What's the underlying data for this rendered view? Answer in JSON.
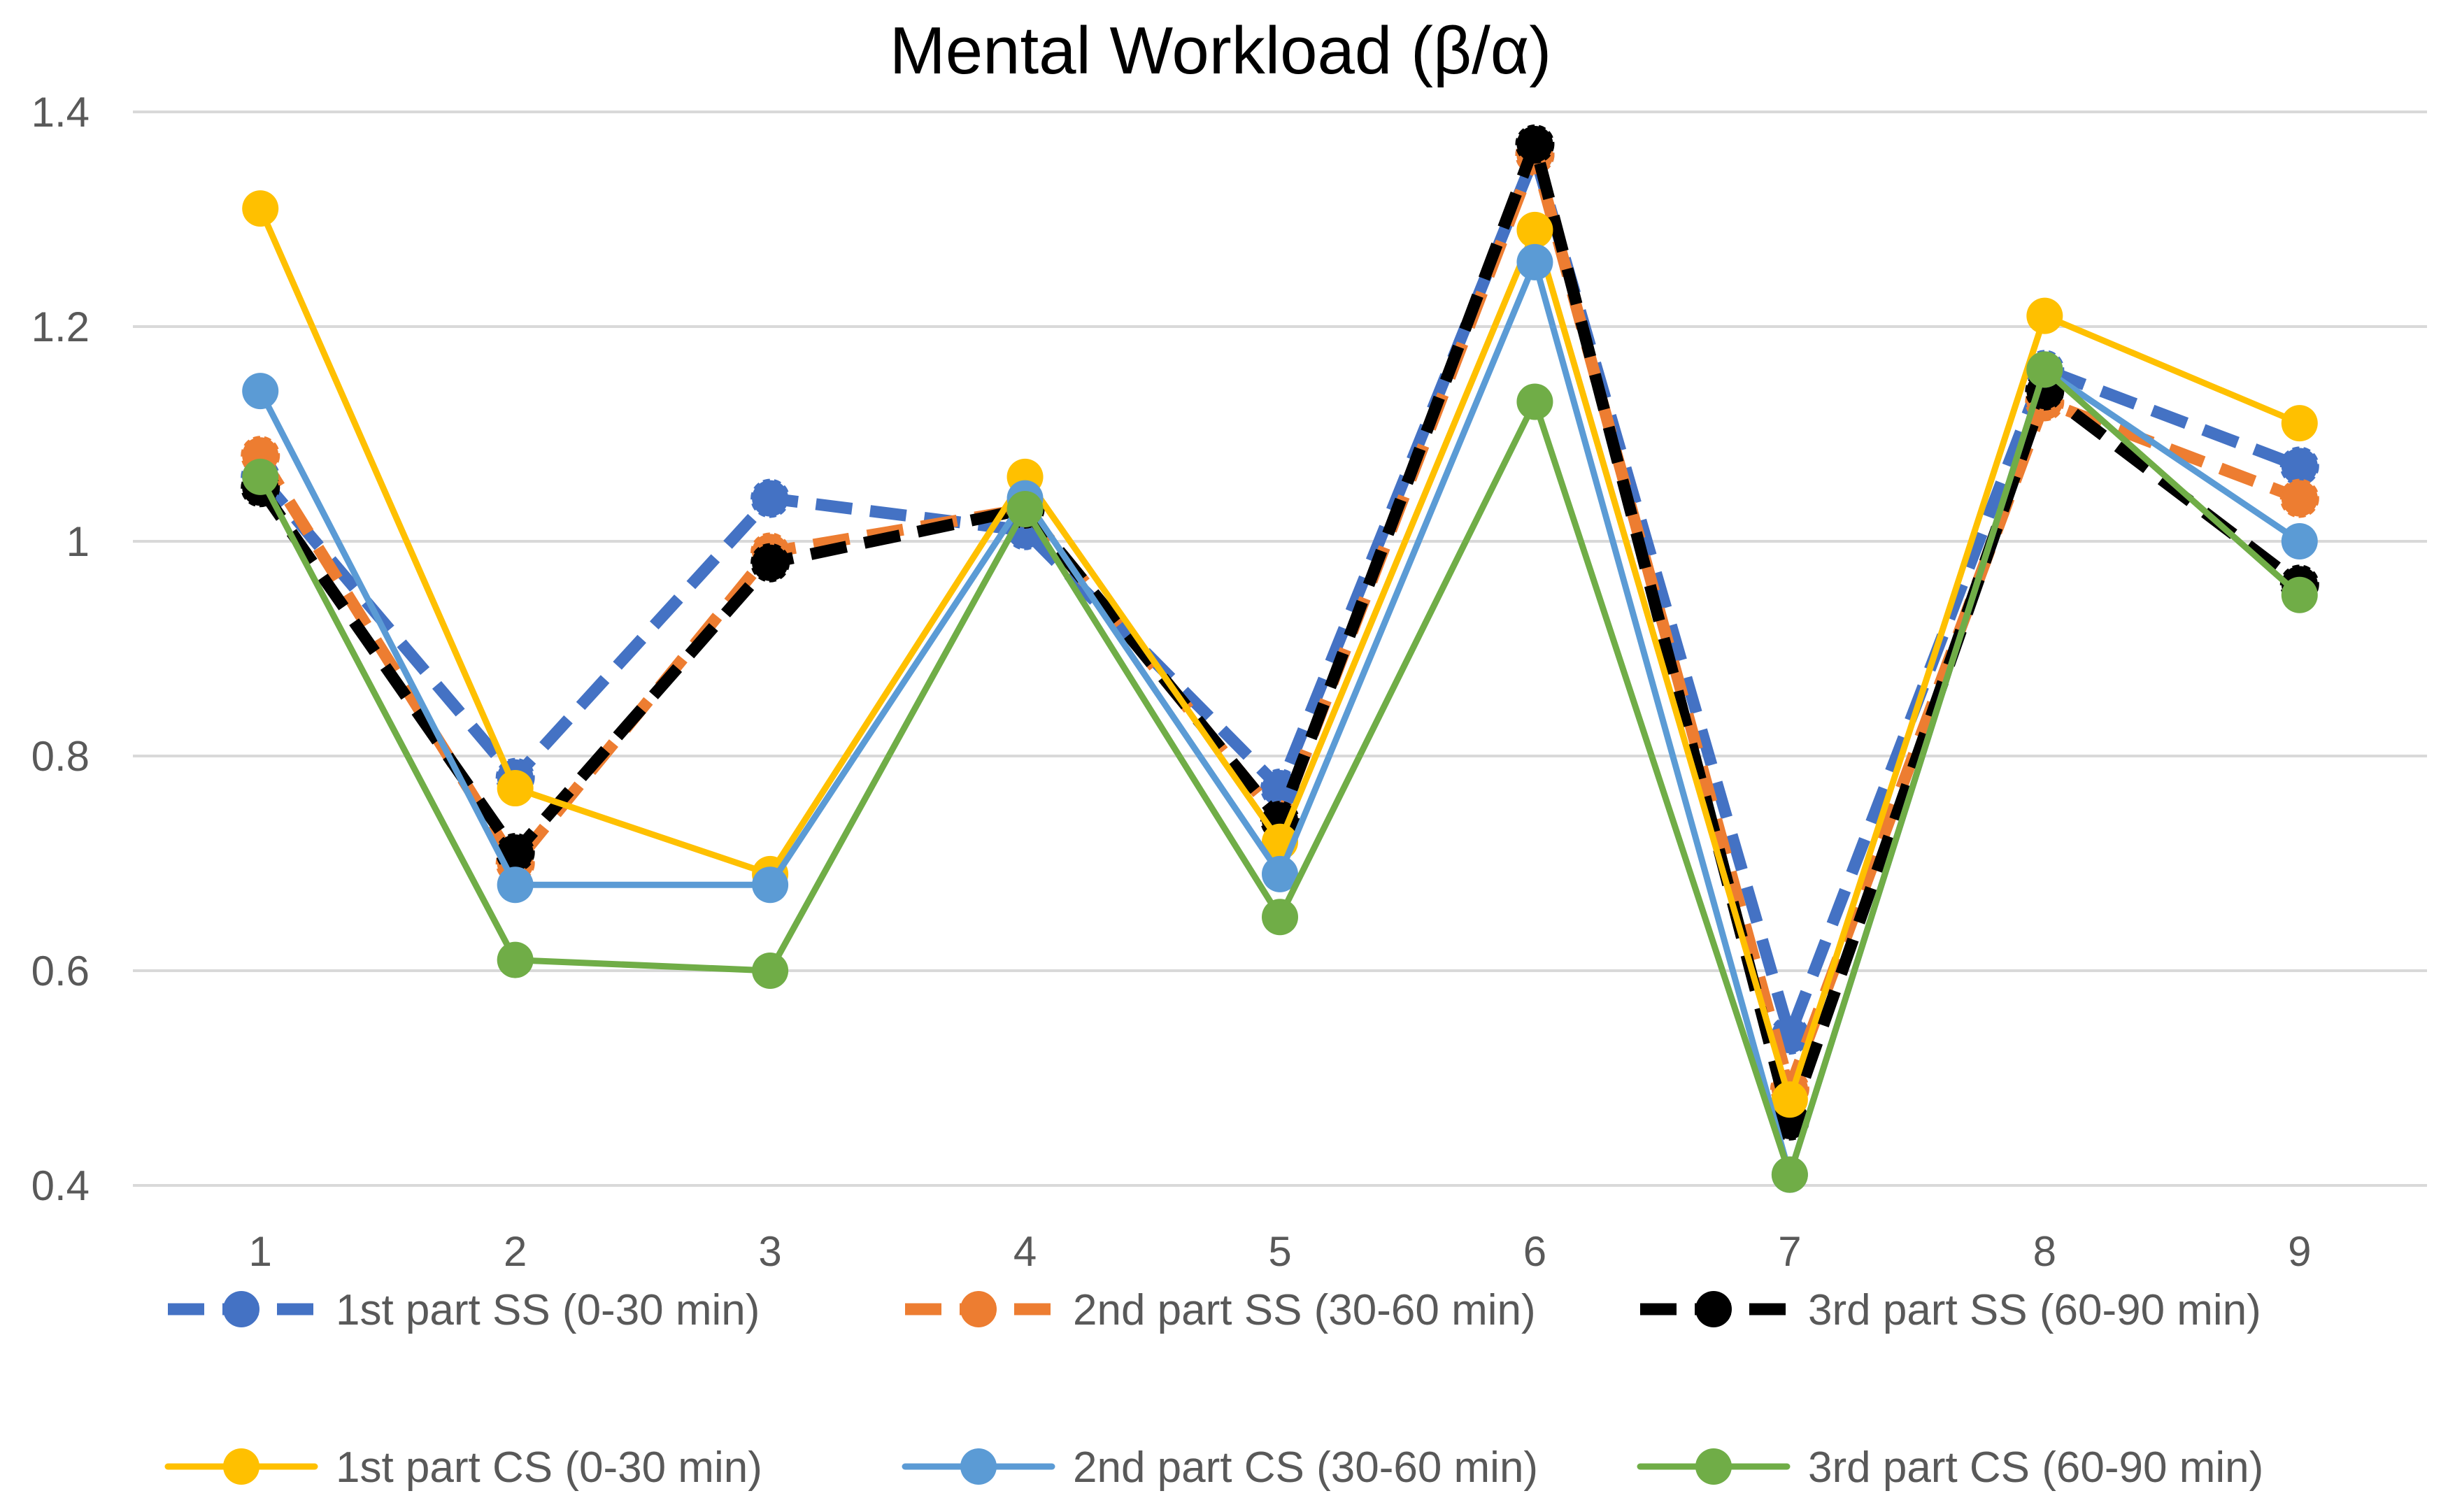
{
  "chart_data": {
    "type": "line",
    "title": "Mental Workload (β/α)",
    "xlabel": "",
    "ylabel": "",
    "categories": [
      "1",
      "2",
      "3",
      "4",
      "5",
      "6",
      "7",
      "8",
      "9"
    ],
    "ylim": [
      0.4,
      1.4
    ],
    "yticks": [
      0.4,
      0.6,
      0.8,
      1,
      1.2,
      1.4
    ],
    "ytick_labels": [
      "0.4",
      "0.6",
      "0.8",
      "1",
      "1.2",
      "1.4"
    ],
    "grid": true,
    "legend_position": "bottom",
    "series": [
      {
        "name": "1st part SS (0-30 min)",
        "color": "#4472C4",
        "dashed": true,
        "values": [
          1.06,
          0.78,
          1.04,
          1.01,
          0.77,
          1.36,
          0.54,
          1.16,
          1.07
        ]
      },
      {
        "name": "2nd part SS (30-60 min)",
        "color": "#ED7D31",
        "dashed": true,
        "values": [
          1.08,
          0.7,
          0.99,
          1.03,
          0.74,
          1.36,
          0.49,
          1.13,
          1.04
        ]
      },
      {
        "name": "3rd part SS (60-90 min)",
        "color": "#000000",
        "dashed": true,
        "values": [
          1.05,
          0.71,
          0.98,
          1.03,
          0.74,
          1.37,
          0.46,
          1.14,
          0.96
        ]
      },
      {
        "name": "1st part CS (0-30 min)",
        "color": "#FFC000",
        "dashed": false,
        "values": [
          1.31,
          0.77,
          0.69,
          1.06,
          0.72,
          1.29,
          0.48,
          1.21,
          1.11
        ]
      },
      {
        "name": "2nd part CS (30-60 min)",
        "color": "#5B9BD5",
        "dashed": false,
        "values": [
          1.14,
          0.68,
          0.68,
          1.04,
          0.69,
          1.26,
          0.41,
          1.16,
          1.0
        ]
      },
      {
        "name": "3rd part CS (60-90 min)",
        "color": "#70AD47",
        "dashed": false,
        "values": [
          1.06,
          0.61,
          0.6,
          1.03,
          0.65,
          1.13,
          0.41,
          1.16,
          0.95
        ]
      }
    ]
  }
}
